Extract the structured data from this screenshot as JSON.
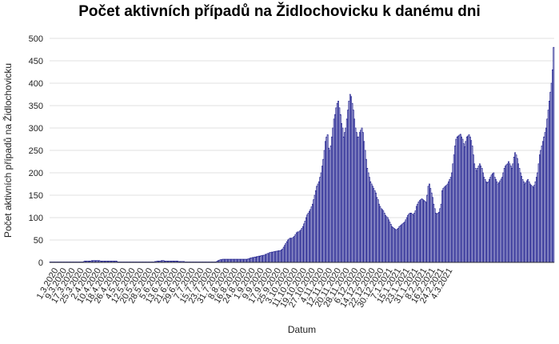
{
  "chart_data": {
    "type": "bar",
    "title": "Počet aktivních případů na Židlochovicku k danému dni",
    "xlabel": "Datum",
    "ylabel": "Počet aktivních případů na Židlochovicku",
    "ylim": [
      0,
      500
    ],
    "yticks": [
      0,
      50,
      100,
      150,
      200,
      250,
      300,
      350,
      400,
      450,
      500
    ],
    "grid": "horizontal",
    "bar_color": "#1a1a8c",
    "bar_fill": "#ffffff",
    "start_date": "1.3.2020",
    "x_tick_labels": [
      "1.3.2020",
      "9.3.2020",
      "17.3.2020",
      "25.3.2020",
      "2.4.2020",
      "10.4.2020",
      "18.4.2020",
      "26.4.2020",
      "4.5.2020",
      "12.5.2020",
      "20.5.2020",
      "28.5.2020",
      "5.6.2020",
      "13.6.2020",
      "21.6.2020",
      "29.6.2020",
      "7.7.2020",
      "15.7.2020",
      "23.7.2020",
      "31.7.2020",
      "8.8.2020",
      "16.8.2020",
      "24.8.2020",
      "1.9.2020",
      "9.9.2020",
      "17.9.2020",
      "25.9.2020",
      "3.10.2020",
      "11.10.2020",
      "19.10.2020",
      "27.10.2020",
      "4.11.2020",
      "12.11.2020",
      "20.11.2020",
      "28.11.2020",
      "6.12.2020",
      "14.12.2020",
      "22.12.2020",
      "30.12.2020",
      "7.1.2021",
      "15.1.2021",
      "23.1.2021",
      "31.1.2021",
      "8.2.2021",
      "16.2.2021",
      "24.2.2021",
      "4.3.2021"
    ],
    "values": [
      1,
      1,
      1,
      1,
      1,
      1,
      1,
      1,
      1,
      1,
      1,
      1,
      1,
      1,
      1,
      1,
      1,
      1,
      1,
      1,
      1,
      1,
      1,
      1,
      1,
      1,
      1,
      1,
      1,
      1,
      1,
      1,
      3,
      3,
      3,
      3,
      3,
      3,
      3,
      4,
      4,
      4,
      4,
      4,
      4,
      4,
      4,
      3,
      3,
      3,
      3,
      3,
      3,
      3,
      3,
      3,
      3,
      3,
      3,
      3,
      3,
      3,
      3,
      1,
      1,
      1,
      1,
      1,
      1,
      1,
      1,
      1,
      1,
      1,
      1,
      1,
      1,
      1,
      1,
      1,
      1,
      1,
      1,
      1,
      1,
      1,
      1,
      1,
      1,
      1,
      1,
      1,
      1,
      1,
      1,
      1,
      1,
      1,
      2,
      2,
      3,
      3,
      3,
      3,
      4,
      4,
      4,
      3,
      3,
      3,
      3,
      3,
      3,
      3,
      3,
      3,
      3,
      3,
      3,
      3,
      2,
      2,
      2,
      2,
      2,
      2,
      1,
      1,
      1,
      1,
      1,
      1,
      1,
      1,
      1,
      1,
      1,
      1,
      1,
      1,
      1,
      1,
      1,
      1,
      1,
      1,
      1,
      1,
      1,
      1,
      1,
      1,
      1,
      1,
      1,
      1,
      3,
      4,
      5,
      6,
      6,
      7,
      7,
      7,
      7,
      7,
      7,
      7,
      7,
      7,
      7,
      7,
      7,
      7,
      7,
      7,
      7,
      7,
      7,
      7,
      7,
      7,
      7,
      7,
      7,
      8,
      8,
      10,
      10,
      11,
      11,
      12,
      12,
      13,
      13,
      14,
      14,
      15,
      15,
      16,
      16,
      18,
      18,
      20,
      20,
      22,
      22,
      23,
      23,
      24,
      24,
      25,
      25,
      26,
      26,
      26,
      28,
      30,
      34,
      38,
      42,
      46,
      50,
      52,
      54,
      54,
      54,
      56,
      58,
      62,
      66,
      68,
      68,
      70,
      72,
      76,
      80,
      86,
      92,
      100,
      106,
      110,
      114,
      118,
      124,
      130,
      140,
      150,
      160,
      170,
      175,
      180,
      190,
      200,
      215,
      230,
      250,
      270,
      280,
      285,
      255,
      250,
      260,
      280,
      300,
      320,
      330,
      345,
      355,
      360,
      345,
      330,
      310,
      300,
      280,
      290,
      300,
      320,
      340,
      360,
      375,
      370,
      355,
      340,
      320,
      300,
      290,
      280,
      280,
      290,
      295,
      300,
      290,
      270,
      250,
      230,
      210,
      200,
      190,
      180,
      175,
      170,
      165,
      160,
      155,
      145,
      140,
      130,
      125,
      120,
      118,
      115,
      110,
      105,
      102,
      100,
      95,
      90,
      85,
      80,
      78,
      76,
      74,
      72,
      74,
      76,
      80,
      82,
      84,
      86,
      88,
      90,
      95,
      100,
      105,
      108,
      110,
      110,
      108,
      106,
      110,
      115,
      125,
      130,
      135,
      138,
      140,
      142,
      140,
      138,
      136,
      134,
      150,
      170,
      175,
      165,
      155,
      145,
      130,
      120,
      110,
      108,
      110,
      112,
      120,
      130,
      160,
      165,
      168,
      170,
      172,
      175,
      180,
      185,
      190,
      200,
      220,
      240,
      260,
      275,
      280,
      282,
      284,
      286,
      280,
      275,
      265,
      258,
      270,
      280,
      282,
      285,
      280,
      272,
      260,
      240,
      220,
      210,
      205,
      210,
      215,
      220,
      215,
      210,
      200,
      190,
      185,
      180,
      178,
      180,
      185,
      190,
      195,
      198,
      200,
      190,
      185,
      180,
      175,
      178,
      182,
      186,
      190,
      200,
      210,
      215,
      218,
      220,
      225,
      220,
      215,
      210,
      220,
      235,
      245,
      240,
      232,
      220,
      210,
      200,
      192,
      185,
      180,
      175,
      178,
      182,
      185,
      180,
      175,
      172,
      170,
      168,
      172,
      180,
      190,
      200,
      220,
      240,
      250,
      260,
      270,
      280,
      290,
      300,
      320,
      340,
      360,
      380,
      400,
      430,
      480
    ]
  }
}
